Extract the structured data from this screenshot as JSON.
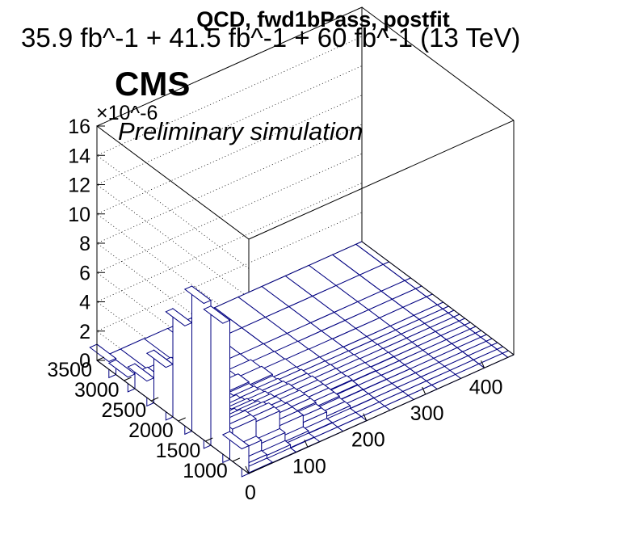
{
  "chart_data": {
    "type": "lego3d",
    "title": "QCD, fwd1bPass, postfit",
    "lumi_text": "35.9 fb^-1 + 41.5 fb^-1 + 60 fb^-1 (13 TeV)",
    "cms_label": "CMS",
    "extra_label": "Preliminary simulation",
    "z_exponent": "×10^-6",
    "x_axis": {
      "range": [
        0,
        450
      ],
      "ticks": [
        0,
        100,
        200,
        300,
        400
      ],
      "tick_labels": [
        "0",
        "100",
        "200",
        "300",
        "400"
      ],
      "bin_edges": [
        0,
        40,
        80,
        120,
        160,
        200,
        240,
        280,
        320,
        360,
        400,
        440,
        480
      ]
    },
    "y_axis": {
      "range": [
        700,
        3500
      ],
      "ticks": [
        1000,
        1500,
        2000,
        2500,
        3000,
        3500
      ],
      "tick_labels": [
        "1000",
        "1500",
        "2000",
        "2500",
        "3000",
        "3500"
      ],
      "bin_edges": [
        700,
        800,
        900,
        1000,
        1100,
        1200,
        1300,
        1400,
        1500,
        1600,
        1700,
        1800,
        1900,
        2000,
        2200,
        2400,
        2600,
        3000,
        3500
      ]
    },
    "z_axis": {
      "range": [
        0,
        16
      ],
      "ticks": [
        0,
        2,
        4,
        6,
        8,
        10,
        12,
        14,
        16
      ],
      "tick_labels": [
        "0",
        "2",
        "4",
        "6",
        "8",
        "10",
        "12",
        "14",
        "16"
      ],
      "unit_scale": 1e-06
    },
    "values": [
      [
        0.05,
        0.03,
        0.02,
        0.01,
        0.01,
        0.0,
        0.0,
        0.0,
        0.0,
        0.0,
        0.0,
        0.0
      ],
      [
        0.3,
        0.25,
        0.05,
        0.02,
        0.02,
        0.0,
        0.0,
        0.0,
        0.0,
        0.0,
        0.0,
        0.0
      ],
      [
        1.0,
        0.8,
        0.2,
        0.05,
        0.02,
        0.0,
        0.0,
        0.0,
        0.0,
        0.0,
        0.0,
        0.0
      ],
      [
        2.2,
        2.0,
        1.0,
        0.5,
        0.2,
        0.02,
        0.0,
        0.0,
        0.0,
        0.0,
        0.0,
        0.0
      ],
      [
        2.2,
        2.0,
        1.0,
        0.5,
        0.2,
        0.02,
        0.0,
        0.0,
        0.0,
        0.0,
        0.0,
        0.0
      ],
      [
        2.0,
        1.8,
        1.0,
        0.6,
        0.3,
        0.05,
        0.02,
        0.0,
        0.0,
        0.0,
        0.0,
        0.0
      ],
      [
        1.8,
        1.6,
        0.9,
        0.6,
        0.3,
        0.1,
        0.02,
        0.0,
        0.0,
        0.0,
        0.0,
        0.0
      ],
      [
        1.6,
        1.4,
        0.9,
        0.6,
        0.3,
        0.15,
        0.05,
        0.0,
        0.0,
        0.0,
        0.0,
        0.0
      ],
      [
        1.4,
        1.2,
        0.8,
        0.5,
        0.3,
        0.1,
        0.05,
        0.02,
        0.0,
        0.0,
        0.0,
        0.0
      ],
      [
        1.2,
        1.0,
        0.7,
        0.5,
        0.3,
        0.1,
        0.05,
        0.02,
        0.0,
        0.0,
        0.0,
        0.0
      ],
      [
        1.0,
        0.9,
        0.6,
        0.4,
        0.2,
        0.1,
        0.05,
        0.02,
        0.0,
        0.0,
        0.0,
        0.0
      ],
      [
        0.8,
        0.7,
        0.5,
        0.3,
        0.2,
        0.05,
        0.02,
        0.0,
        0.0,
        0.0,
        0.0,
        0.0
      ],
      [
        0.6,
        0.5,
        0.4,
        0.2,
        0.1,
        0.05,
        0.02,
        0.0,
        0.0,
        0.0,
        0.0,
        0.0
      ],
      [
        1.0,
        0.8,
        0.5,
        0.3,
        0.1,
        0.05,
        0.02,
        0.0,
        0.0,
        0.0,
        0.0,
        0.0
      ],
      [
        0.6,
        0.5,
        0.3,
        0.2,
        0.05,
        0.02,
        0.0,
        0.0,
        0.0,
        0.0,
        0.0,
        0.0
      ],
      [
        0.3,
        0.25,
        0.15,
        0.05,
        0.02,
        0.0,
        0.0,
        0.0,
        0.0,
        0.0,
        0.0,
        0.0
      ],
      [
        0.2,
        0.15,
        0.1,
        0.05,
        0.0,
        0.0,
        0.0,
        0.0,
        0.0,
        0.0,
        0.0,
        0.0
      ],
      [
        0.05,
        0.05,
        0.02,
        0.0,
        0.0,
        0.0,
        0.0,
        0.0,
        0.0,
        0.0,
        0.0,
        0.0
      ]
    ],
    "back_row_values": [
      1.1,
      1.0,
      1.7,
      3.6,
      7.4,
      9.9,
      9.5,
      1.9
    ],
    "grid": true,
    "colors": {
      "bar_fill": "#ffffff",
      "bar_edge": "#000080",
      "frame": "#000000"
    }
  }
}
